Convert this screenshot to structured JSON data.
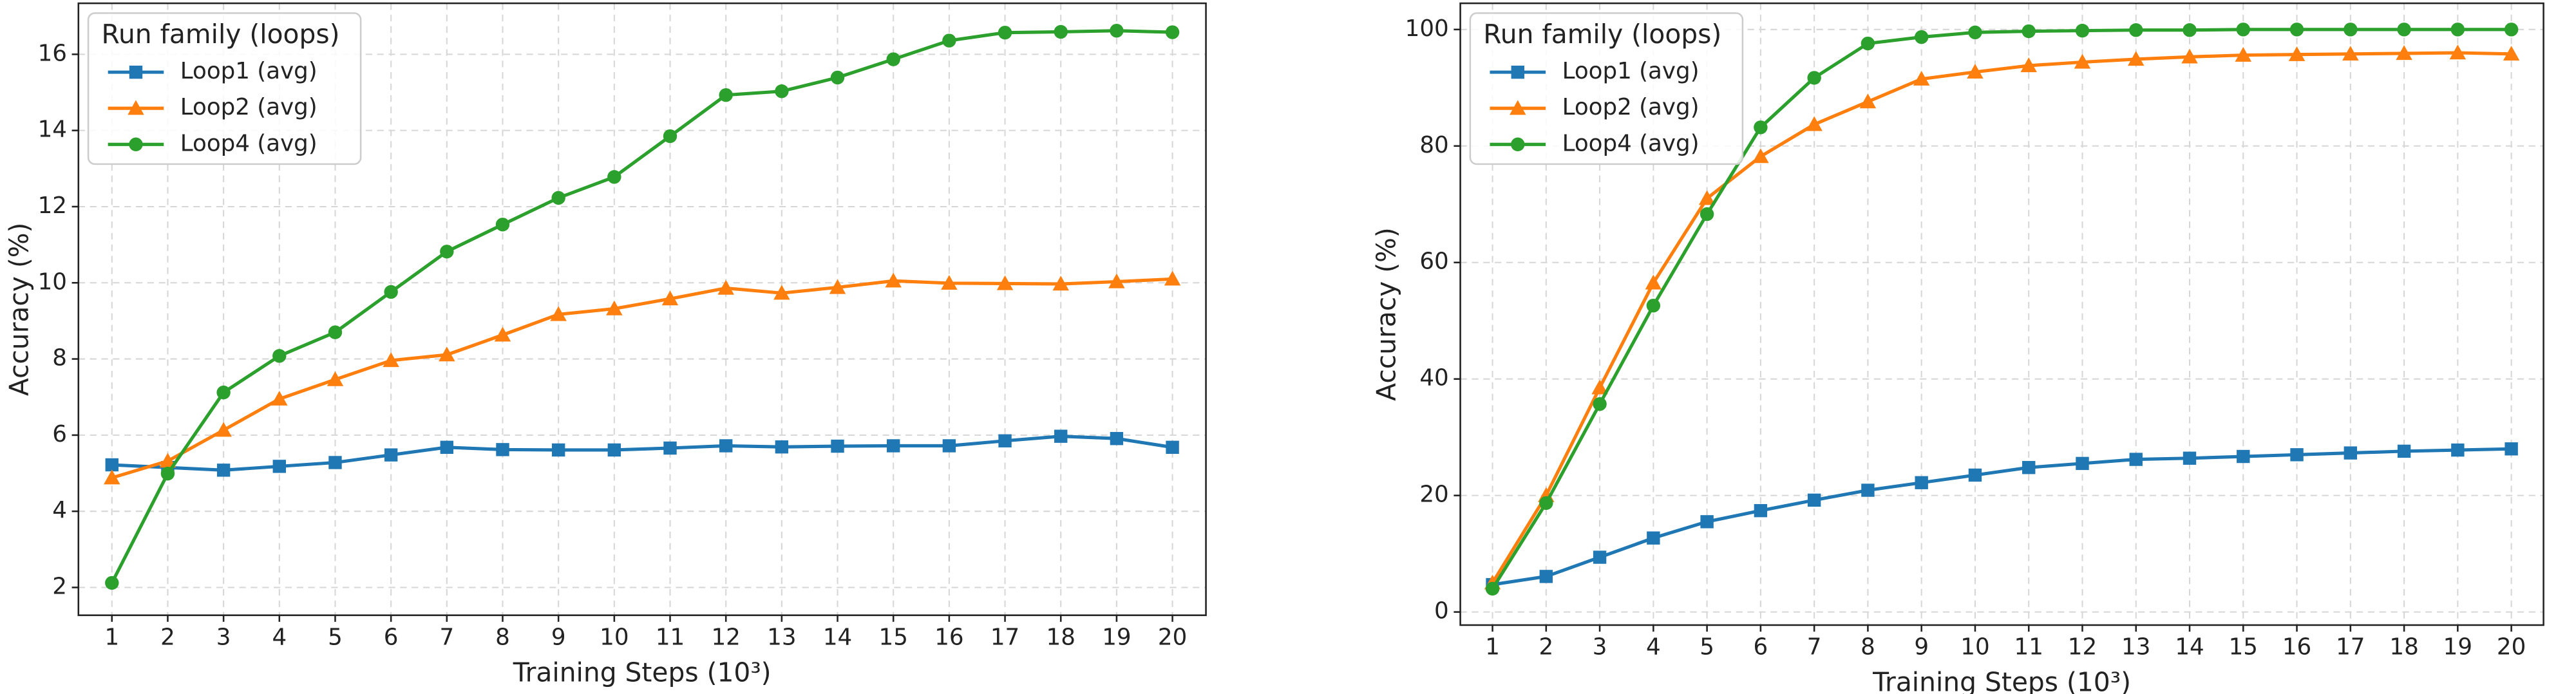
{
  "chart_data": [
    {
      "type": "line",
      "xlabel": "Training Steps (10³)",
      "ylabel": "Accuracy (%)",
      "x": [
        1,
        2,
        3,
        4,
        5,
        6,
        7,
        8,
        9,
        10,
        11,
        12,
        13,
        14,
        15,
        16,
        17,
        18,
        19,
        20
      ],
      "xlim": [
        0.4,
        20.6
      ],
      "xticks": [
        1,
        2,
        3,
        4,
        5,
        6,
        7,
        8,
        9,
        10,
        11,
        12,
        13,
        14,
        15,
        16,
        17,
        18,
        19,
        20
      ],
      "ylim": [
        1.27,
        17.34
      ],
      "yticks": [
        2,
        4,
        6,
        8,
        10,
        12,
        14,
        16
      ],
      "grid": true,
      "legend_title": "Run family (loops)",
      "legend_loc": "upper left",
      "series": [
        {
          "name": "Loop1 (avg)",
          "color": "#1f77b4",
          "marker": "square",
          "values": [
            5.22,
            5.15,
            5.08,
            5.18,
            5.28,
            5.48,
            5.68,
            5.62,
            5.61,
            5.61,
            5.66,
            5.72,
            5.69,
            5.71,
            5.72,
            5.72,
            5.85,
            5.97,
            5.91,
            5.68
          ]
        },
        {
          "name": "Loop2 (avg)",
          "color": "#ff7f0e",
          "marker": "triangle",
          "values": [
            4.88,
            5.32,
            6.13,
            6.95,
            7.46,
            7.96,
            8.11,
            8.63,
            9.17,
            9.32,
            9.58,
            9.86,
            9.73,
            9.88,
            10.05,
            9.99,
            9.98,
            9.97,
            10.03,
            10.1
          ]
        },
        {
          "name": "Loop4 (avg)",
          "color": "#2ca02c",
          "marker": "circle",
          "values": [
            2.12,
            4.99,
            7.12,
            8.08,
            8.7,
            9.76,
            10.82,
            11.53,
            12.23,
            12.78,
            13.85,
            14.93,
            15.03,
            15.39,
            15.87,
            16.36,
            16.57,
            16.59,
            16.62,
            16.58
          ]
        }
      ]
    },
    {
      "type": "line",
      "xlabel": "Training Steps (10³)",
      "ylabel": "Accuracy (%)",
      "x": [
        1,
        2,
        3,
        4,
        5,
        6,
        7,
        8,
        9,
        10,
        11,
        12,
        13,
        14,
        15,
        16,
        17,
        18,
        19,
        20
      ],
      "xlim": [
        0.4,
        20.6
      ],
      "xticks": [
        1,
        2,
        3,
        4,
        5,
        6,
        7,
        8,
        9,
        10,
        11,
        12,
        13,
        14,
        15,
        16,
        17,
        18,
        19,
        20
      ],
      "ylim": [
        -2.25,
        104.5
      ],
      "yticks": [
        0,
        20,
        40,
        60,
        80,
        100
      ],
      "grid": true,
      "legend_title": "Run family (loops)",
      "legend_loc": "upper left",
      "series": [
        {
          "name": "Loop1 (avg)",
          "color": "#1f77b4",
          "marker": "square",
          "values": [
            4.7,
            6.1,
            9.4,
            12.7,
            15.5,
            17.4,
            19.2,
            20.9,
            22.2,
            23.5,
            24.8,
            25.5,
            26.2,
            26.4,
            26.7,
            27.0,
            27.3,
            27.6,
            27.8,
            28.0
          ]
        },
        {
          "name": "Loop2 (avg)",
          "color": "#ff7f0e",
          "marker": "triangle",
          "values": [
            5.0,
            20.0,
            38.5,
            56.5,
            71.0,
            78.2,
            83.7,
            87.6,
            91.5,
            92.7,
            93.8,
            94.4,
            94.9,
            95.3,
            95.6,
            95.7,
            95.8,
            95.9,
            96.0,
            95.8
          ]
        },
        {
          "name": "Loop4 (avg)",
          "color": "#2ca02c",
          "marker": "circle",
          "values": [
            4.0,
            18.7,
            35.7,
            52.6,
            68.3,
            83.2,
            91.7,
            97.6,
            98.7,
            99.5,
            99.7,
            99.8,
            99.9,
            99.9,
            100,
            100,
            100,
            100,
            100,
            100
          ]
        }
      ]
    }
  ]
}
